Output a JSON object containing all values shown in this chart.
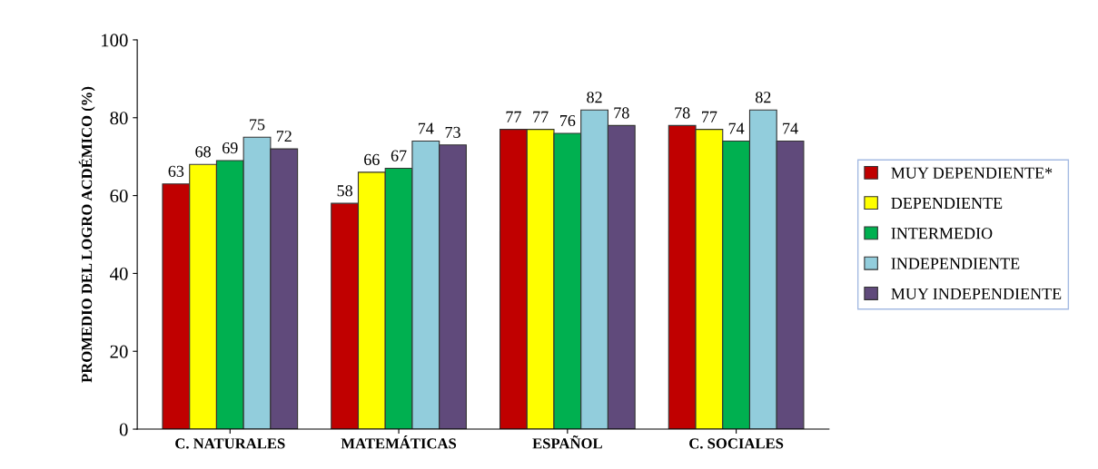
{
  "chart_data": {
    "type": "bar",
    "ylabel": "PROMEDIO DEL LOGRO ACDÉMICO (%)",
    "categories": [
      "C. NATURALES",
      "MATEMÁTICAS",
      "ESPAÑOL",
      "C. SOCIALES"
    ],
    "series": [
      {
        "name": "MUY DEPENDIENTE*",
        "color": "#c00000",
        "values": [
          63,
          58,
          77,
          78
        ]
      },
      {
        "name": "DEPENDIENTE",
        "color": "#ffff00",
        "values": [
          68,
          66,
          77,
          77
        ]
      },
      {
        "name": "INTERMEDIO",
        "color": "#00b050",
        "values": [
          69,
          67,
          76,
          74
        ]
      },
      {
        "name": "INDEPENDIENTE",
        "color": "#92cddc",
        "values": [
          75,
          74,
          82,
          82
        ]
      },
      {
        "name": "MUY INDEPENDIENTE",
        "color": "#604a7b",
        "values": [
          72,
          73,
          78,
          74
        ]
      }
    ],
    "ylim": [
      0,
      100
    ],
    "yticks": [
      0,
      20,
      40,
      60,
      80,
      100
    ],
    "data_labels": true,
    "grid": false,
    "legend": "right"
  }
}
